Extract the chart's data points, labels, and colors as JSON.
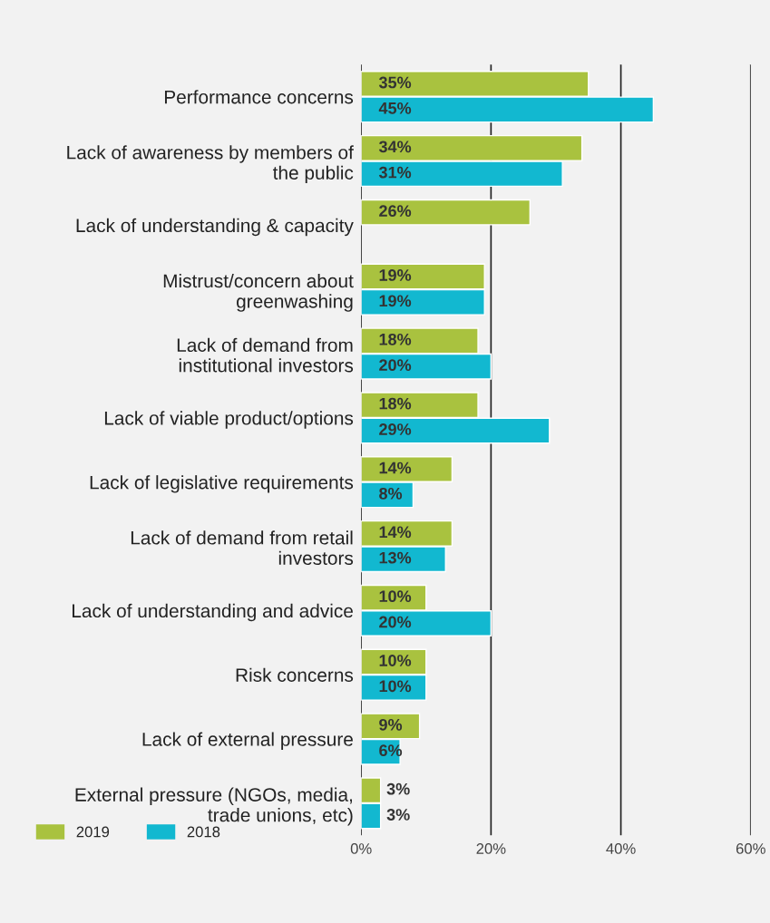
{
  "chart_data": {
    "type": "bar",
    "orientation": "horizontal",
    "categories": [
      "Performance concerns",
      "Lack of awareness by members of\nthe public",
      "Lack of understanding & capacity",
      "Mistrust/concern about\ngreenwashing",
      "Lack of demand from\ninstitutional investors",
      "Lack of viable product/options",
      "Lack of legislative requirements",
      "Lack of demand from retail\ninvestors",
      "Lack of understanding and advice",
      "Risk concerns",
      "Lack of external pressure",
      "External pressure (NGOs, media,\ntrade unions, etc)"
    ],
    "series": [
      {
        "name": "2019",
        "color": "#a9c23f",
        "values": [
          35,
          34,
          26,
          19,
          18,
          18,
          14,
          14,
          10,
          10,
          9,
          3
        ],
        "value_labels": [
          "35%",
          "34%",
          "26%",
          "19%",
          "18%",
          "18%",
          "14%",
          "14%",
          "10%",
          "10%",
          "9%",
          "3%"
        ]
      },
      {
        "name": "2018",
        "color": "#12b8d0",
        "values": [
          45,
          31,
          null,
          19,
          20,
          29,
          8,
          13,
          20,
          10,
          6,
          3
        ],
        "value_labels": [
          "45%",
          "31%",
          null,
          "19%",
          "20%",
          "29%",
          "8%",
          "13%",
          "20%",
          "10%",
          "6%",
          "3%"
        ]
      }
    ],
    "xlim": [
      0,
      60
    ],
    "xticks": [
      {
        "value": 0,
        "label": "0%"
      },
      {
        "value": 20,
        "label": "20%"
      },
      {
        "value": 40,
        "label": "40%"
      },
      {
        "value": 60,
        "label": "60%"
      }
    ],
    "grid": "x",
    "legend": "bottom left"
  }
}
